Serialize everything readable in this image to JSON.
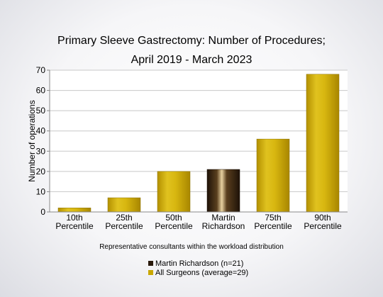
{
  "chart_data": {
    "type": "bar",
    "title_line1": "Primary Sleeve Gastrectomy: Number of Procedures;",
    "title_line2": "April 2019 - March 2023",
    "ylabel": "Number of operations",
    "xlabel": "Representative consultants within the workload distribution",
    "ylim": [
      0,
      70
    ],
    "yticks": [
      0,
      10,
      20,
      30,
      40,
      50,
      60,
      70
    ],
    "categories": [
      [
        "10th",
        "Percentile"
      ],
      [
        "25th",
        "Percentile"
      ],
      [
        "50th",
        "Percentile"
      ],
      [
        "Martin",
        "Richardson"
      ],
      [
        "75th",
        "Percentile"
      ],
      [
        "90th",
        "Percentile"
      ]
    ],
    "values": [
      2,
      7,
      20,
      21,
      36,
      68
    ],
    "highlight_index": 3,
    "colors": {
      "surgeons": "#c9a700",
      "highlight": "#2a1a0c"
    },
    "legend": [
      {
        "label": "Martin Richardson (n=21)",
        "color": "#2a1a0c"
      },
      {
        "label": "All Surgeons (average=29)",
        "color": "#c9a700"
      }
    ]
  }
}
